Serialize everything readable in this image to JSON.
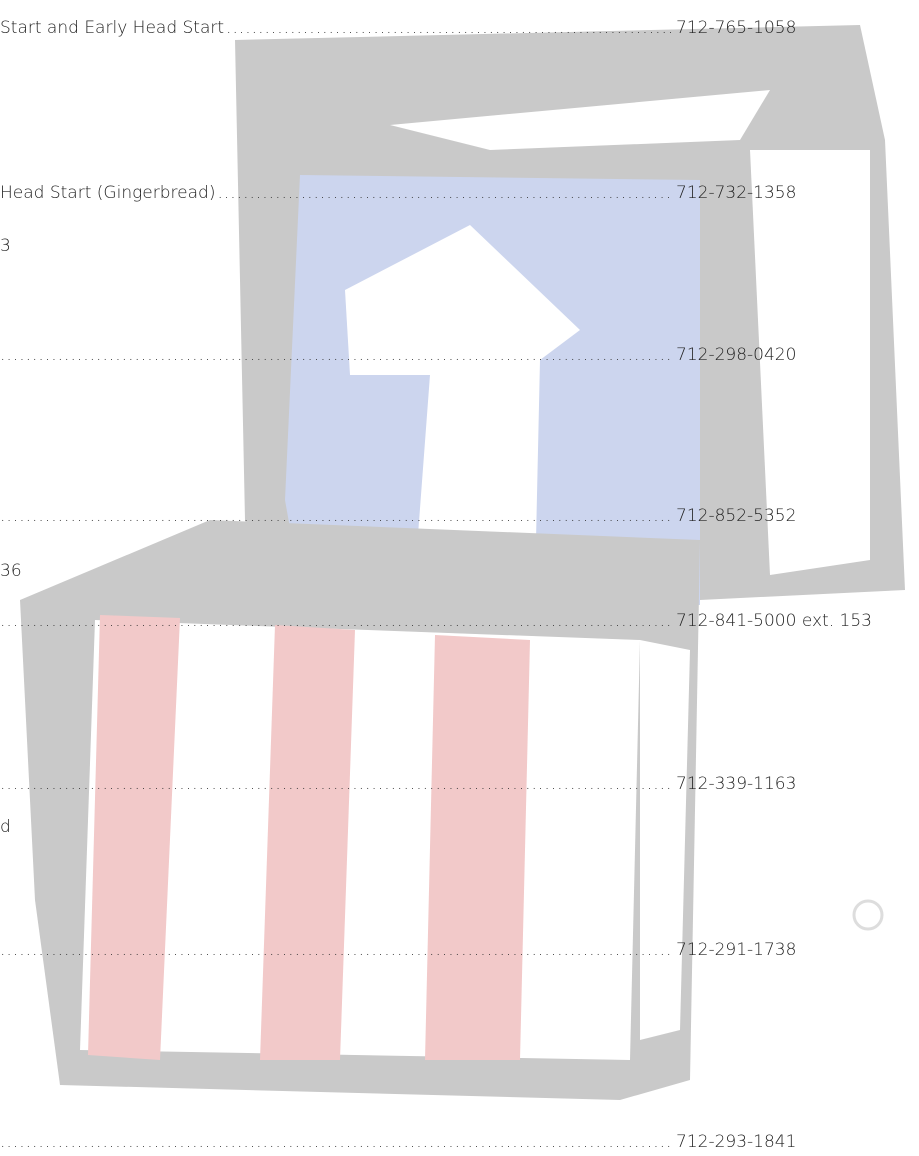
{
  "lines": [
    {
      "label": "Start and Early Head Start",
      "phone": "712-765-1058"
    },
    {
      "label": "Head Start (Gingerbread)",
      "phone": "712-732-1358"
    },
    {
      "label": "3"
    },
    {
      "phone": "712-298-0420"
    },
    {
      "phone": "712-852-5352"
    },
    {
      "label": "36"
    },
    {
      "phone": "712-841-5000 ext. 153"
    },
    {
      "phone": "712-339-1163"
    },
    {
      "label": "d"
    },
    {
      "phone": "712-291-1738"
    },
    {
      "phone": "712-293-1841"
    }
  ]
}
